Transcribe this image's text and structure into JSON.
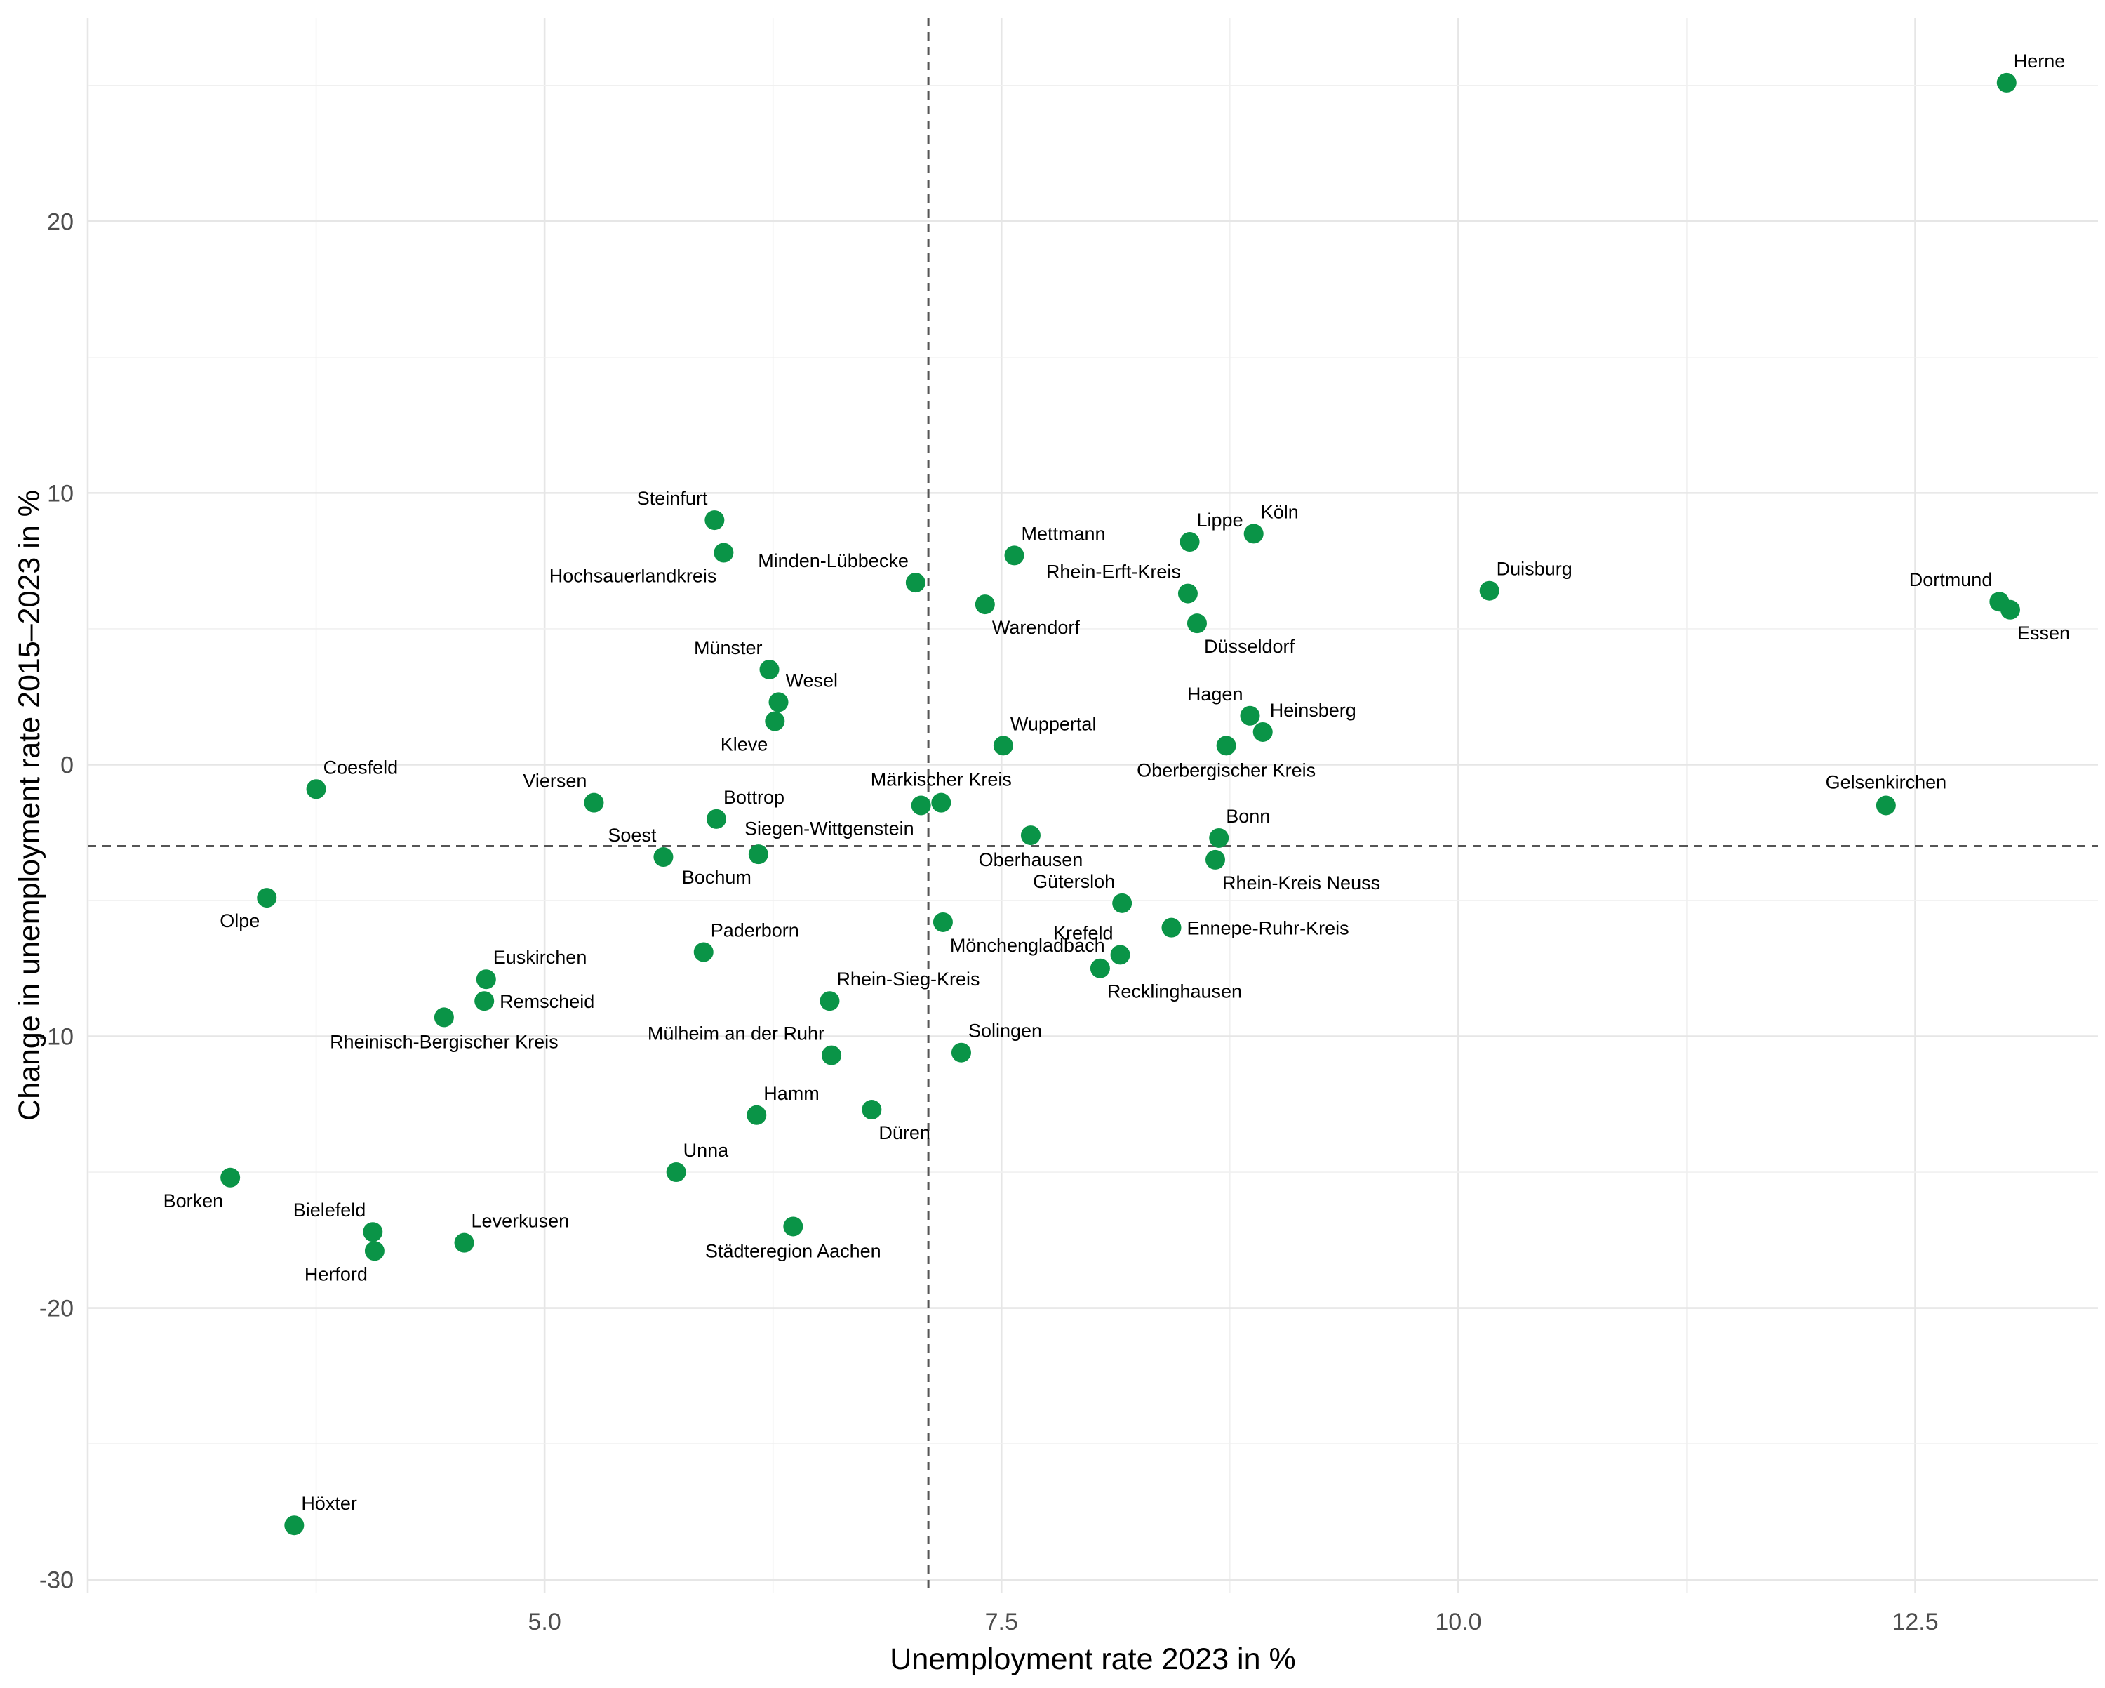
{
  "chart_data": {
    "type": "scatter",
    "title": "",
    "xlabel": "Unemployment rate 2023 in %",
    "ylabel": "Change in unemployment rate 2015–2023 in %",
    "xlim": [
      2.5,
      13.5
    ],
    "ylim": [
      -30.5,
      27.5
    ],
    "x_ticks": [
      5.0,
      7.5,
      10.0,
      12.5
    ],
    "x_tick_labels": [
      "5.0",
      "7.5",
      "10.0",
      "12.5"
    ],
    "y_ticks": [
      -30,
      -20,
      -10,
      0,
      10,
      20
    ],
    "y_tick_labels": [
      "-30",
      "-20",
      "-10",
      "0",
      "10",
      "20"
    ],
    "reference_lines": {
      "vertical_x": 7.1,
      "horizontal_y": -3.0
    },
    "grid": true,
    "point_color": "#0a9447",
    "points": [
      {
        "name": "Herne",
        "x": 13.0,
        "y": 25.1,
        "pos": "tr"
      },
      {
        "name": "Dortmund",
        "x": 12.96,
        "y": 6.0,
        "pos": "tl"
      },
      {
        "name": "Essen",
        "x": 13.02,
        "y": 5.7,
        "pos": "br"
      },
      {
        "name": "Gelsenkirchen",
        "x": 12.34,
        "y": -1.5,
        "pos": "t"
      },
      {
        "name": "Duisburg",
        "x": 10.17,
        "y": 6.4,
        "pos": "tr"
      },
      {
        "name": "Köln",
        "x": 8.88,
        "y": 8.5,
        "pos": "tr"
      },
      {
        "name": "Lippe",
        "x": 8.53,
        "y": 8.2,
        "pos": "tr"
      },
      {
        "name": "Rhein-Erft-Kreis",
        "x": 8.52,
        "y": 6.3,
        "pos": "tl"
      },
      {
        "name": "Düsseldorf",
        "x": 8.57,
        "y": 5.2,
        "pos": "br"
      },
      {
        "name": "Hagen",
        "x": 8.86,
        "y": 1.8,
        "pos": "tl"
      },
      {
        "name": "Heinsberg",
        "x": 8.93,
        "y": 1.2,
        "pos": "tr"
      },
      {
        "name": "Oberbergischer Kreis",
        "x": 8.73,
        "y": 0.7,
        "pos": "b"
      },
      {
        "name": "Bonn",
        "x": 8.69,
        "y": -2.7,
        "pos": "tr"
      },
      {
        "name": "Rhein-Kreis Neuss",
        "x": 8.67,
        "y": -3.5,
        "pos": "br"
      },
      {
        "name": "Ennepe-Ruhr-Kreis",
        "x": 8.43,
        "y": -6.0,
        "pos": "r"
      },
      {
        "name": "Gütersloh",
        "x": 8.16,
        "y": -5.1,
        "pos": "tl"
      },
      {
        "name": "Krefeld",
        "x": 8.15,
        "y": -7.0,
        "pos": "tl"
      },
      {
        "name": "Recklinghausen",
        "x": 8.04,
        "y": -7.5,
        "pos": "br"
      },
      {
        "name": "Mettmann",
        "x": 7.57,
        "y": 7.7,
        "pos": "tr"
      },
      {
        "name": "Warendorf",
        "x": 7.41,
        "y": 5.9,
        "pos": "br"
      },
      {
        "name": "Wuppertal",
        "x": 7.51,
        "y": 0.7,
        "pos": "tr"
      },
      {
        "name": "Oberhausen",
        "x": 7.66,
        "y": -2.6,
        "pos": "b"
      },
      {
        "name": "Minden-Lübbecke",
        "x": 7.03,
        "y": 6.7,
        "pos": "tl"
      },
      {
        "name": "Märkischer Kreis",
        "x": 7.17,
        "y": -1.4,
        "pos": "t"
      },
      {
        "name": "Siegen-Wittgenstein",
        "x": 7.06,
        "y": -1.5,
        "pos": "bl"
      },
      {
        "name": "Mönchengladbach",
        "x": 7.18,
        "y": -5.8,
        "pos": "br"
      },
      {
        "name": "Solingen",
        "x": 7.28,
        "y": -10.6,
        "pos": "tr"
      },
      {
        "name": "Düren",
        "x": 6.79,
        "y": -12.7,
        "pos": "br"
      },
      {
        "name": "Rhein-Sieg-Kreis",
        "x": 6.56,
        "y": -8.7,
        "pos": "tr"
      },
      {
        "name": "Mülheim an der Ruhr",
        "x": 6.57,
        "y": -10.7,
        "pos": "tl"
      },
      {
        "name": "Städteregion Aachen",
        "x": 6.36,
        "y": -17.0,
        "pos": "b"
      },
      {
        "name": "Hamm",
        "x": 6.16,
        "y": -12.9,
        "pos": "tr"
      },
      {
        "name": "Steinfurt",
        "x": 5.93,
        "y": 9.0,
        "pos": "tl"
      },
      {
        "name": "Hochsauerlandkreis",
        "x": 5.98,
        "y": 7.8,
        "pos": "bl"
      },
      {
        "name": "Münster",
        "x": 6.23,
        "y": 3.5,
        "pos": "tl"
      },
      {
        "name": "Wesel",
        "x": 6.28,
        "y": 2.3,
        "pos": "tr"
      },
      {
        "name": "Kleve",
        "x": 6.26,
        "y": 1.6,
        "pos": "bl"
      },
      {
        "name": "Bottrop",
        "x": 5.94,
        "y": -2.0,
        "pos": "tr"
      },
      {
        "name": "Bochum",
        "x": 6.17,
        "y": -3.3,
        "pos": "bl"
      },
      {
        "name": "Soest",
        "x": 5.65,
        "y": -3.4,
        "pos": "tl"
      },
      {
        "name": "Viersen",
        "x": 5.27,
        "y": -1.4,
        "pos": "tl"
      },
      {
        "name": "Paderborn",
        "x": 5.87,
        "y": -6.9,
        "pos": "tr"
      },
      {
        "name": "Unna",
        "x": 5.72,
        "y": -15.0,
        "pos": "tr"
      },
      {
        "name": "Euskirchen",
        "x": 4.68,
        "y": -7.9,
        "pos": "tr"
      },
      {
        "name": "Remscheid",
        "x": 4.67,
        "y": -8.7,
        "pos": "r"
      },
      {
        "name": "Rheinisch-Bergischer Kreis",
        "x": 4.45,
        "y": -9.3,
        "pos": "b"
      },
      {
        "name": "Leverkusen",
        "x": 4.56,
        "y": -17.6,
        "pos": "tr"
      },
      {
        "name": "Bielefeld",
        "x": 4.06,
        "y": -17.2,
        "pos": "tl"
      },
      {
        "name": "Herford",
        "x": 4.07,
        "y": -17.9,
        "pos": "bl"
      },
      {
        "name": "Coesfeld",
        "x": 3.75,
        "y": -0.9,
        "pos": "tr"
      },
      {
        "name": "Olpe",
        "x": 3.48,
        "y": -4.9,
        "pos": "bl"
      },
      {
        "name": "Borken",
        "x": 3.28,
        "y": -15.2,
        "pos": "bl"
      },
      {
        "name": "Höxter",
        "x": 3.63,
        "y": -28.0,
        "pos": "tr"
      }
    ]
  }
}
